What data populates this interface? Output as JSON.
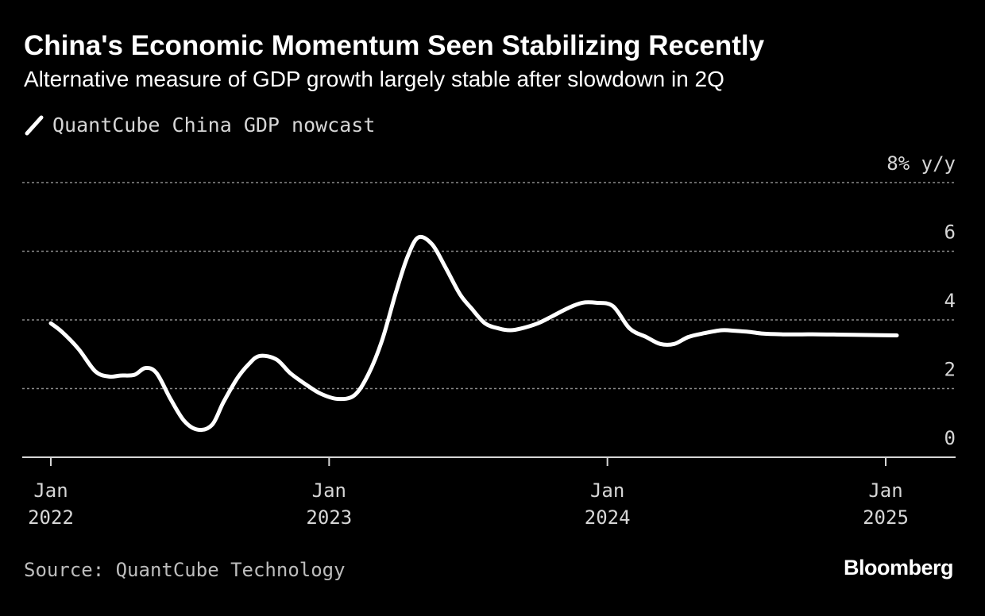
{
  "header": {
    "title": "China's Economic Momentum Seen Stabilizing Recently",
    "subtitle": "Alternative measure of GDP growth largely stable after slowdown in 2Q"
  },
  "footer": {
    "source": "Source: QuantCube Technology",
    "brand": "Bloomberg"
  },
  "colors": {
    "background": "#000000",
    "series": "#ffffff",
    "grid": "#8a8a8a",
    "axis": "#d6d6d6"
  },
  "chart_data": {
    "type": "line",
    "title": "China's Economic Momentum Seen Stabilizing Recently",
    "subtitle": "Alternative measure of GDP growth largely stable after slowdown in 2Q",
    "ylabel": "% y/y",
    "ylim": [
      0,
      8
    ],
    "y_ticks": [
      {
        "value": 8,
        "label": "8% y/y"
      },
      {
        "value": 6,
        "label": "6"
      },
      {
        "value": 4,
        "label": "4"
      },
      {
        "value": 2,
        "label": "2"
      },
      {
        "value": 0,
        "label": "0"
      }
    ],
    "x_ticks": [
      {
        "t": 2022.0,
        "month": "Jan",
        "year": "2022"
      },
      {
        "t": 2023.0,
        "month": "Jan",
        "year": "2023"
      },
      {
        "t": 2024.0,
        "month": "Jan",
        "year": "2024"
      },
      {
        "t": 2025.0,
        "month": "Jan",
        "year": "2025"
      }
    ],
    "xlim": [
      2021.9,
      2025.25
    ],
    "grid": true,
    "legend_position": "top-left",
    "series": [
      {
        "name": "QuantCube China GDP nowcast",
        "x": [
          2022.0,
          2022.04,
          2022.1,
          2022.16,
          2022.21,
          2022.25,
          2022.3,
          2022.34,
          2022.38,
          2022.43,
          2022.48,
          2022.53,
          2022.58,
          2022.62,
          2022.67,
          2022.71,
          2022.75,
          2022.81,
          2022.86,
          2022.92,
          2022.97,
          2023.03,
          2023.09,
          2023.14,
          2023.19,
          2023.24,
          2023.28,
          2023.32,
          2023.37,
          2023.42,
          2023.47,
          2023.51,
          2023.56,
          2023.61,
          2023.65,
          2023.69,
          2023.75,
          2023.8,
          2023.86,
          2023.91,
          2023.96,
          2024.02,
          2024.08,
          2024.14,
          2024.19,
          2024.24,
          2024.29,
          2024.34,
          2024.41,
          2024.46,
          2024.51,
          2024.56,
          2024.63,
          2024.7,
          2024.76,
          2024.85,
          2024.93,
          2025.04
        ],
        "values": [
          3.9,
          3.65,
          3.15,
          2.5,
          2.35,
          2.38,
          2.4,
          2.6,
          2.45,
          1.7,
          1.05,
          0.8,
          0.95,
          1.6,
          2.3,
          2.7,
          2.95,
          2.85,
          2.45,
          2.1,
          1.85,
          1.7,
          1.8,
          2.4,
          3.4,
          4.8,
          5.8,
          6.4,
          6.2,
          5.5,
          4.75,
          4.35,
          3.9,
          3.75,
          3.7,
          3.75,
          3.9,
          4.1,
          4.35,
          4.5,
          4.5,
          4.4,
          3.75,
          3.5,
          3.3,
          3.3,
          3.5,
          3.6,
          3.7,
          3.68,
          3.65,
          3.6,
          3.58,
          3.58,
          3.58,
          3.57,
          3.56,
          3.55
        ]
      }
    ]
  }
}
